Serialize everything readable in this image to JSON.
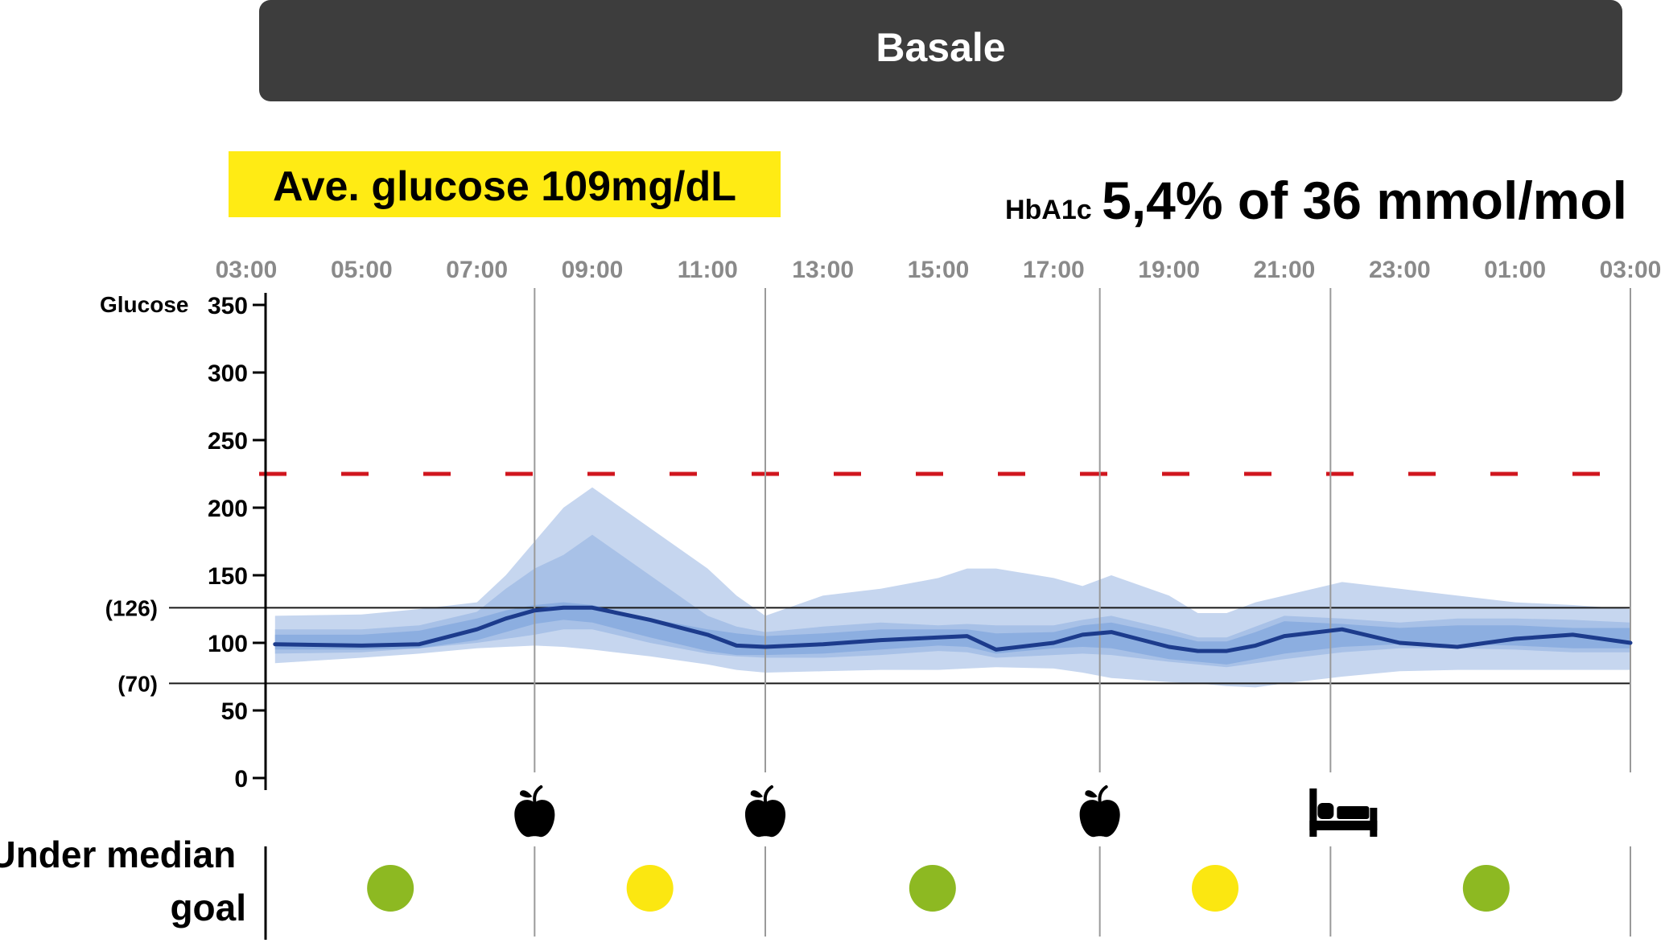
{
  "header": {
    "title": "Basale",
    "bg_color": "#3d3d3d"
  },
  "avg_badge": {
    "text": "Ave. glucose 109mg/dL",
    "bg_color": "#ffeb14"
  },
  "hba1c": {
    "label": "HbA1c",
    "value": "5,4% of 36 mmol/mol"
  },
  "chart_data": {
    "type": "area",
    "ylabel": "Glucose",
    "x_ticks": [
      "03:00",
      "05:00",
      "07:00",
      "09:00",
      "11:00",
      "13:00",
      "15:00",
      "17:00",
      "19:00",
      "21:00",
      "23:00",
      "01:00",
      "03:00"
    ],
    "y_ticks": [
      0,
      50,
      100,
      150,
      200,
      250,
      300,
      350
    ],
    "ylim": [
      0,
      360
    ],
    "target_range": {
      "low": 70,
      "high": 126,
      "low_label": "(70)",
      "high_label": "(126)"
    },
    "threshold": {
      "value": 225,
      "color": "#d0161e",
      "style": "dashed"
    },
    "event_lines_hours": [
      8.0,
      12.0,
      17.8,
      21.8,
      27.0
    ],
    "x_hours": [
      3.5,
      5,
      6,
      7,
      7.5,
      8,
      8.5,
      9,
      10,
      11,
      11.5,
      12,
      13,
      14,
      15,
      15.5,
      16,
      17,
      17.5,
      18,
      19,
      19.5,
      20,
      20.5,
      21,
      22,
      23,
      24,
      25,
      26,
      27
    ],
    "series": [
      {
        "name": "",
        "role": "p5",
        "values": [
          85,
          89,
          92,
          96,
          97,
          98,
          97,
          95,
          90,
          84,
          80,
          78,
          79,
          80,
          80,
          81,
          82,
          81,
          78,
          74,
          71,
          70,
          68,
          67,
          70,
          75,
          79,
          80,
          80,
          80,
          80
        ]
      },
      {
        "name": "",
        "role": "p95",
        "values": [
          120,
          121,
          125,
          130,
          150,
          175,
          200,
          215,
          185,
          155,
          135,
          120,
          135,
          140,
          148,
          155,
          155,
          148,
          142,
          150,
          135,
          122,
          122,
          130,
          135,
          145,
          140,
          135,
          130,
          128,
          125
        ]
      },
      {
        "name": "",
        "role": "p25",
        "values": [
          92,
          93,
          96,
          100,
          103,
          106,
          110,
          110,
          100,
          92,
          90,
          89,
          89,
          91,
          94,
          93,
          89,
          91,
          92,
          91,
          86,
          84,
          82,
          85,
          88,
          93,
          96,
          96,
          95,
          93,
          93
        ]
      },
      {
        "name": "",
        "role": "p75",
        "values": [
          110,
          110,
          113,
          123,
          140,
          155,
          165,
          180,
          150,
          120,
          112,
          108,
          112,
          115,
          113,
          114,
          113,
          113,
          117,
          120,
          110,
          104,
          104,
          112,
          120,
          118,
          115,
          118,
          118,
          117,
          115
        ]
      },
      {
        "name": "",
        "role": "p40",
        "values": [
          95,
          95,
          96,
          102,
          108,
          114,
          117,
          115,
          104,
          94,
          91,
          91,
          92,
          95,
          98,
          97,
          92,
          96,
          97,
          96,
          88,
          86,
          84,
          88,
          92,
          97,
          99,
          99,
          98,
          96,
          96
        ]
      },
      {
        "name": "",
        "role": "p60",
        "values": [
          106,
          106,
          109,
          118,
          124,
          128,
          130,
          128,
          118,
          110,
          107,
          105,
          107,
          110,
          110,
          110,
          107,
          108,
          113,
          115,
          106,
          101,
          101,
          108,
          116,
          114,
          111,
          113,
          113,
          111,
          111
        ]
      },
      {
        "name": "",
        "role": "median",
        "values": [
          99,
          98,
          99,
          110,
          118,
          124,
          126,
          126,
          117,
          106,
          98,
          97,
          99,
          102,
          104,
          105,
          95,
          100,
          106,
          108,
          97,
          94,
          94,
          98,
          105,
          110,
          100,
          97,
          103,
          106,
          100
        ]
      }
    ],
    "band_colors": {
      "outer": "#c6d6ef",
      "middle": "#a8c1e7",
      "inner": "#8caee0",
      "median": "#1c3b8c"
    },
    "events": [
      {
        "type": "meal",
        "hour": 8.0,
        "icon": "apple-icon"
      },
      {
        "type": "meal",
        "hour": 12.0,
        "icon": "apple-icon"
      },
      {
        "type": "meal",
        "hour": 17.8,
        "icon": "apple-icon"
      },
      {
        "type": "bed",
        "hour": 21.8,
        "icon": "bed-icon"
      }
    ],
    "goal_label": [
      "Under median",
      "goal"
    ],
    "goal_status": [
      {
        "hour": 5.5,
        "color": "#8db922"
      },
      {
        "hour": 10.0,
        "color": "#fbe711"
      },
      {
        "hour": 14.9,
        "color": "#8db922"
      },
      {
        "hour": 19.8,
        "color": "#fbe711"
      },
      {
        "hour": 24.5,
        "color": "#8db922"
      }
    ]
  }
}
